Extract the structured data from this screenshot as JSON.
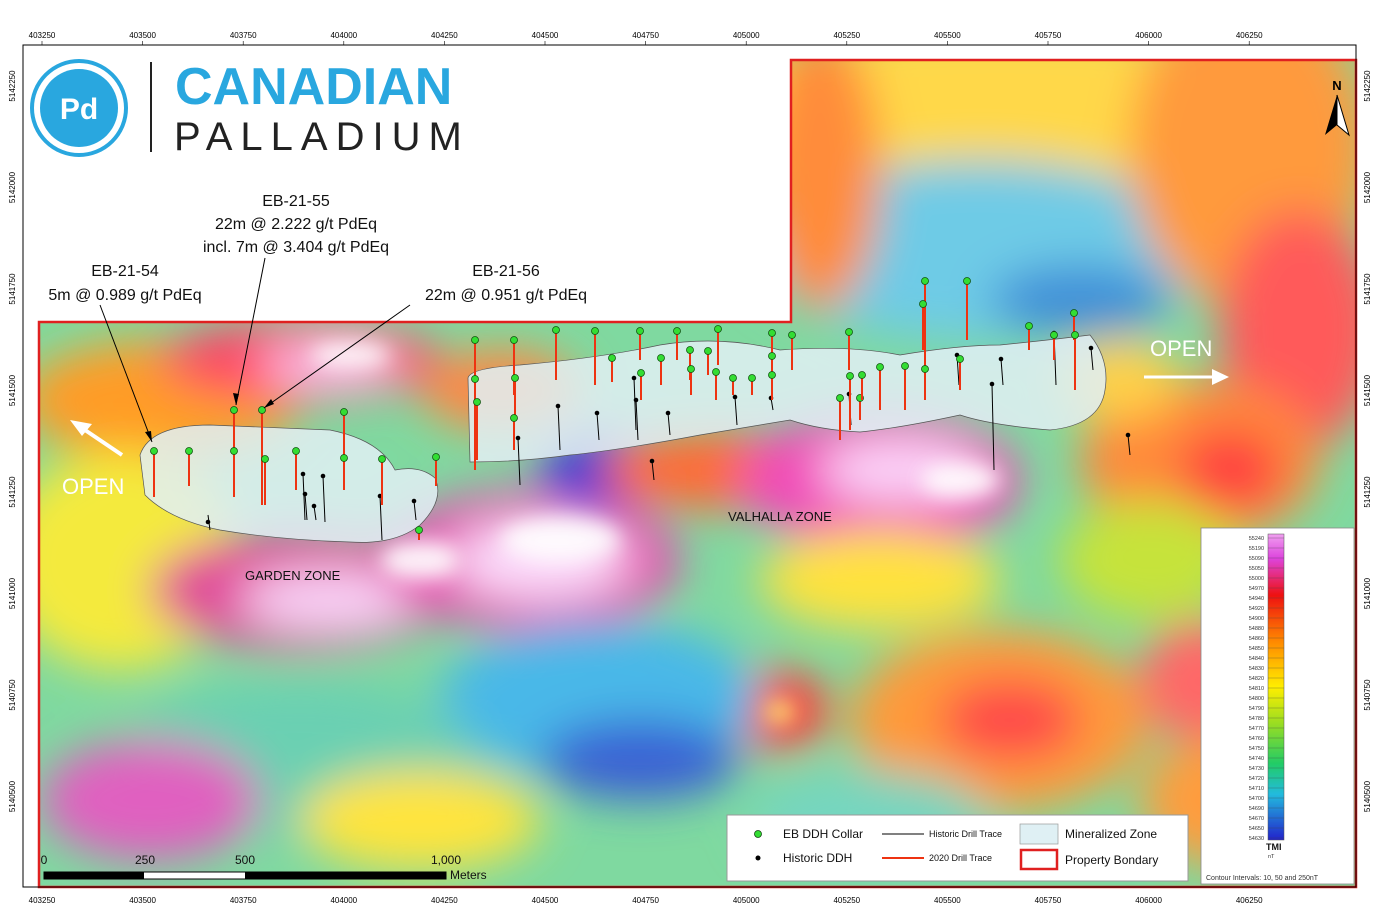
{
  "logo": {
    "symbol": "Pd",
    "title": "CANADIAN",
    "subtitle": "PALLADIUM"
  },
  "north_arrow": {
    "label": "N"
  },
  "axes": {
    "x_ticks": [
      "403250",
      "403500",
      "403750",
      "404000",
      "404250",
      "404500",
      "404750",
      "405000",
      "405250",
      "405500",
      "405750",
      "406000",
      "406250"
    ],
    "y_ticks": [
      "5142250",
      "5142000",
      "5141750",
      "5141500",
      "5141250",
      "5141000",
      "5140750",
      "5140500"
    ]
  },
  "callouts": {
    "eb54": {
      "hole": "EB-21-54",
      "line1": "5m @ 0.989 g/t PdEq"
    },
    "eb55": {
      "hole": "EB-21-55",
      "line1": "22m @ 2.222 g/t PdEq",
      "line2": "incl. 7m @ 3.404 g/t PdEq"
    },
    "eb56": {
      "hole": "EB-21-56",
      "line1": "22m @ 0.951 g/t PdEq"
    }
  },
  "open_labels": {
    "west": "OPEN",
    "east": "OPEN"
  },
  "zones": {
    "garden": "GARDEN ZONE",
    "valhalla": "VALHALLA ZONE"
  },
  "legend": {
    "eb_collar": "EB DDH Collar",
    "historic_ddh": "Historic DDH",
    "historic_trace": "Historic Drill Trace",
    "drill_trace_2020": "2020 Drill Trace",
    "mineralized_zone": "Mineralized Zone",
    "property_boundary": "Property Bondary"
  },
  "scale_bar": {
    "labels": [
      "0",
      "250",
      "500",
      "1,000"
    ],
    "units": "Meters"
  },
  "colorbar": {
    "title": "TMI",
    "units": "nT",
    "values": [
      "55240",
      "55190",
      "55090",
      "55050",
      "55000",
      "54970",
      "54940",
      "54920",
      "54900",
      "54880",
      "54860",
      "54850",
      "54840",
      "54830",
      "54820",
      "54810",
      "54800",
      "54790",
      "54780",
      "54770",
      "54760",
      "54750",
      "54740",
      "54730",
      "54720",
      "54710",
      "54700",
      "54690",
      "54670",
      "54650",
      "54630"
    ],
    "note": "Contour Intervals: 10, 50 and 250nT"
  },
  "colors": {
    "accent_blue": "#29a7df",
    "boundary_red": "#e02020",
    "collar_green": "#33dd33",
    "trace_red": "#ee3311",
    "mineralized_fill": "#dff0f4"
  }
}
